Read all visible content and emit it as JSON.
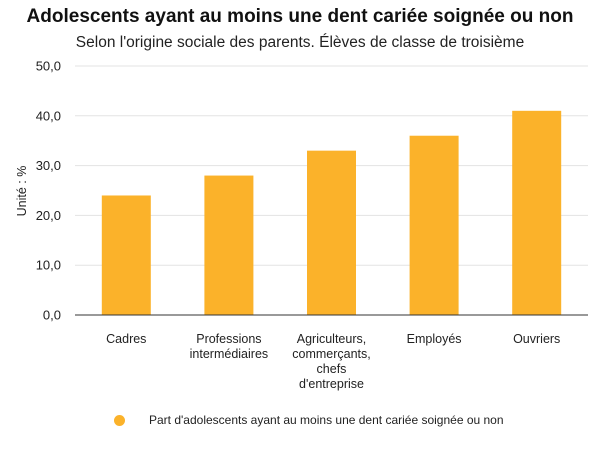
{
  "colors": {
    "bar": "#fbb22a",
    "grid": "#e3e3e3",
    "axis": "#333333"
  },
  "chart_data": {
    "type": "bar",
    "title": "Adolescents ayant au moins une dent cariée soignée ou non",
    "subtitle": "Selon l'origine sociale des parents. Élèves de classe de troisième",
    "ylabel": "Unité : %",
    "xlabel": "",
    "ylim": [
      0,
      50
    ],
    "yticks": [
      "0,0",
      "10,0",
      "20,0",
      "30,0",
      "40,0",
      "50,0"
    ],
    "categories": [
      [
        "Cadres"
      ],
      [
        "Professions",
        "intermédiaires"
      ],
      [
        "Agriculteurs,",
        "commerçants,",
        "chefs",
        "d'entreprise"
      ],
      [
        "Employés"
      ],
      [
        "Ouvriers"
      ]
    ],
    "series": [
      {
        "name": "Part d'adolescents ayant au moins une dent cariée soignée ou non",
        "values": [
          24,
          28,
          33,
          36,
          41
        ]
      }
    ],
    "grid": true,
    "legend": "bottom"
  }
}
